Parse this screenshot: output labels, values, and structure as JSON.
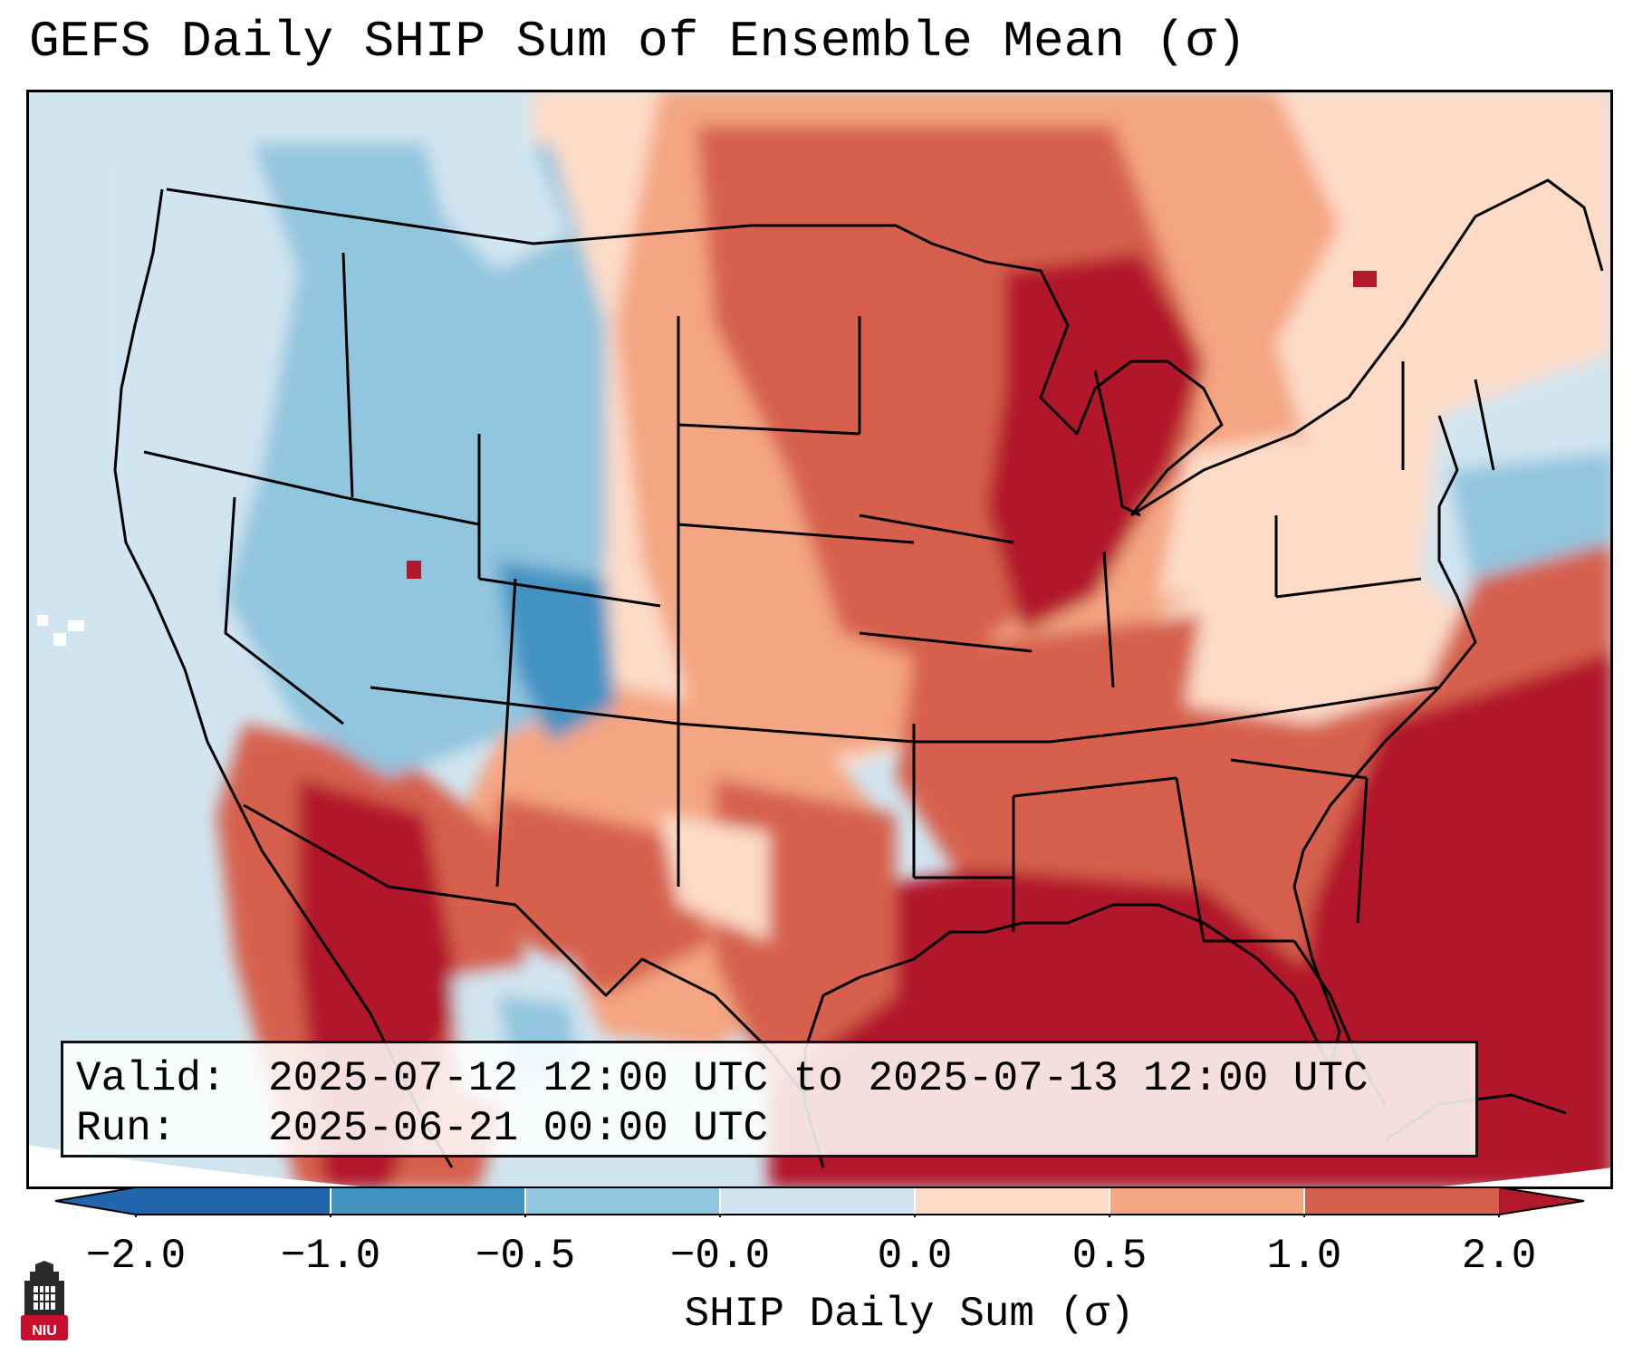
{
  "title": "GEFS Daily SHIP Sum of Ensemble Mean (σ)",
  "info_box": {
    "valid_label": "Valid:",
    "valid_value": "2025-07-12 12:00 UTC to 2025-07-13 12:00 UTC",
    "run_label": "Run:",
    "run_value": "2025-06-21 00:00 UTC"
  },
  "colorbar": {
    "label": "SHIP Daily Sum (σ)",
    "ticks": [
      "−2.0",
      "−1.0",
      "−0.5",
      "−0.0",
      "0.0",
      "0.5",
      "1.0",
      "2.0"
    ],
    "colors": [
      "#2166ac",
      "#4393c3",
      "#92c5de",
      "#d1e5f0",
      "#fddbc7",
      "#f4a582",
      "#d6604d",
      "#b2182b"
    ],
    "extend": "both"
  },
  "map": {
    "projection": "Lambert conformal",
    "region": "Contiguous United States",
    "outside_domain_color": "#ffffff",
    "ocean_west_color": "#d1e5f0",
    "gulf_atlantic_color": "#b2182b"
  },
  "logo": {
    "text": "NIU",
    "color": "#c8102e"
  }
}
